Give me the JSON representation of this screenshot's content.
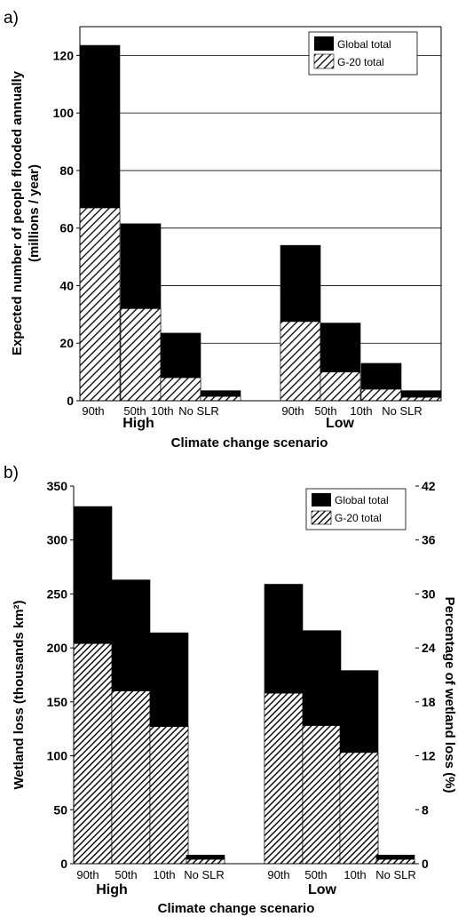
{
  "chart_data": [
    {
      "type": "bar",
      "panel_label": "a)",
      "ylabel": "Expected number of people flooded annually",
      "ylabel_units": "(millions / year)",
      "xlabel": "Climate change scenario",
      "ylim": [
        0,
        130
      ],
      "yticks": [
        0,
        20,
        40,
        60,
        80,
        100,
        120
      ],
      "grid": true,
      "legend_position": "top-right",
      "groups": [
        {
          "name": "High",
          "categories": [
            "90th",
            "50th",
            "10th",
            "No SLR"
          ]
        },
        {
          "name": "Low",
          "categories": [
            "90th",
            "50th",
            "10th",
            "No SLR"
          ]
        }
      ],
      "series": [
        {
          "name": "Global total",
          "color": "#000000",
          "values": [
            123.5,
            61.5,
            23.5,
            3.5,
            54,
            27,
            13,
            3.5
          ]
        },
        {
          "name": "G-20 total",
          "pattern": "diagonal-hatch",
          "values": [
            67,
            32,
            8,
            1.5,
            27.5,
            10,
            4,
            1.2
          ]
        }
      ]
    },
    {
      "type": "bar",
      "panel_label": "b)",
      "ylabel": "Wetland loss (thousands km²)",
      "y2label": "Percentage of wetland loss (%)",
      "xlabel": "Climate change scenario",
      "ylim": [
        0,
        350
      ],
      "yticks": [
        0,
        50,
        100,
        150,
        200,
        250,
        300,
        350
      ],
      "y2ticks": [
        "0",
        "8",
        "12",
        "18",
        "24",
        "30",
        "36",
        "42"
      ],
      "grid": false,
      "legend_position": "top-right",
      "groups": [
        {
          "name": "High",
          "categories": [
            "90th",
            "50th",
            "10th",
            "No SLR"
          ]
        },
        {
          "name": "Low",
          "categories": [
            "90th",
            "50th",
            "10th",
            "No SLR"
          ]
        }
      ],
      "series": [
        {
          "name": "Global total",
          "color": "#000000",
          "values": [
            331,
            263,
            214,
            8,
            259,
            216,
            179,
            8
          ]
        },
        {
          "name": "G-20 total",
          "pattern": "diagonal-hatch",
          "values": [
            204,
            160,
            127,
            4,
            158,
            128,
            103,
            4
          ]
        }
      ]
    }
  ]
}
